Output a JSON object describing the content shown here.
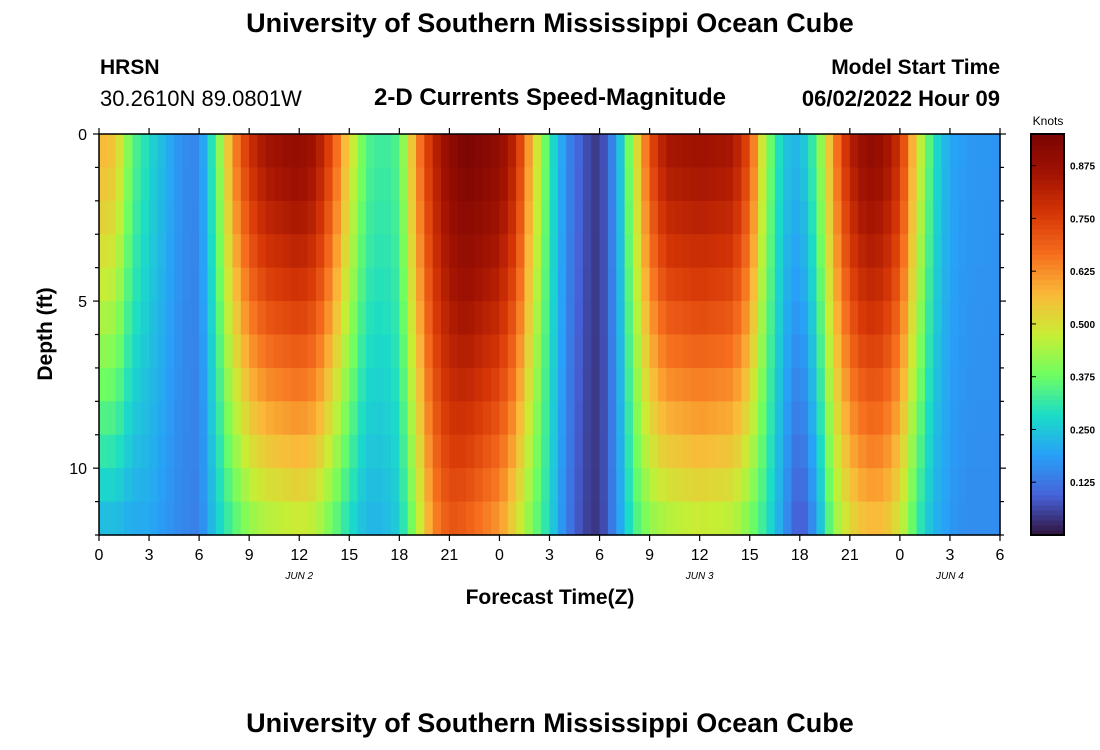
{
  "page": {
    "title": "University of Southern Mississippi Ocean Cube",
    "footer_title": "University of Southern Mississippi Ocean Cube"
  },
  "header": {
    "station": "HRSN",
    "coords": "30.2610N  89.0801W",
    "plot_title": "2-D Currents Speed-Magnitude",
    "start_label": "Model Start Time",
    "start_value": "06/02/2022 Hour 09"
  },
  "chart_data": {
    "type": "heatmap",
    "title": "2-D Currents Speed-Magnitude",
    "xlabel": "Forecast Time(Z)",
    "ylabel": "Depth (ft)",
    "x_hours": [
      0,
      54
    ],
    "x_tick_labels": [
      "0",
      "3",
      "6",
      "9",
      "12",
      "15",
      "18",
      "21",
      "0",
      "3",
      "6",
      "9",
      "12",
      "15",
      "18",
      "21",
      "0",
      "3",
      "6"
    ],
    "date_labels": [
      {
        "label": "JUN 2",
        "hour": 12
      },
      {
        "label": "JUN 3",
        "hour": 36
      },
      {
        "label": "JUN 4",
        "hour": 51
      }
    ],
    "y_range": [
      0,
      12
    ],
    "y_ticks": [
      0,
      5,
      10
    ],
    "y_tick_labels": [
      "0",
      "5",
      "10"
    ],
    "colorbar": {
      "label": "Knots",
      "range": [
        0.0,
        0.95
      ],
      "ticks": [
        "0.125",
        "0.250",
        "0.375",
        "0.500",
        "0.625",
        "0.750",
        "0.875"
      ]
    },
    "speed_profile_by_hour": [
      {
        "hour": 0,
        "surface": 0.58,
        "bottom": 0.22
      },
      {
        "hour": 1,
        "surface": 0.55,
        "bottom": 0.22
      },
      {
        "hour": 2,
        "surface": 0.36,
        "bottom": 0.2
      },
      {
        "hour": 3,
        "surface": 0.28,
        "bottom": 0.2
      },
      {
        "hour": 5,
        "surface": 0.16,
        "bottom": 0.15
      },
      {
        "hour": 6,
        "surface": 0.15,
        "bottom": 0.14
      },
      {
        "hour": 7,
        "surface": 0.35,
        "bottom": 0.25
      },
      {
        "hour": 8,
        "surface": 0.62,
        "bottom": 0.33
      },
      {
        "hour": 9,
        "surface": 0.78,
        "bottom": 0.4
      },
      {
        "hour": 10,
        "surface": 0.86,
        "bottom": 0.43
      },
      {
        "hour": 12,
        "surface": 0.9,
        "bottom": 0.46
      },
      {
        "hour": 13,
        "surface": 0.86,
        "bottom": 0.44
      },
      {
        "hour": 14,
        "surface": 0.72,
        "bottom": 0.36
      },
      {
        "hour": 15,
        "surface": 0.52,
        "bottom": 0.28
      },
      {
        "hour": 16,
        "surface": 0.35,
        "bottom": 0.22
      },
      {
        "hour": 17,
        "surface": 0.32,
        "bottom": 0.22
      },
      {
        "hour": 18,
        "surface": 0.35,
        "bottom": 0.26
      },
      {
        "hour": 19,
        "surface": 0.62,
        "bottom": 0.42
      },
      {
        "hour": 20,
        "surface": 0.8,
        "bottom": 0.62
      },
      {
        "hour": 21,
        "surface": 0.9,
        "bottom": 0.7
      },
      {
        "hour": 22,
        "surface": 0.95,
        "bottom": 0.68
      },
      {
        "hour": 24,
        "surface": 0.9,
        "bottom": 0.6
      },
      {
        "hour": 25,
        "surface": 0.8,
        "bottom": 0.5
      },
      {
        "hour": 26,
        "surface": 0.55,
        "bottom": 0.38
      },
      {
        "hour": 27,
        "surface": 0.32,
        "bottom": 0.28
      },
      {
        "hour": 28,
        "surface": 0.16,
        "bottom": 0.14
      },
      {
        "hour": 29,
        "surface": 0.08,
        "bottom": 0.06
      },
      {
        "hour": 30,
        "surface": 0.04,
        "bottom": 0.04
      },
      {
        "hour": 31,
        "surface": 0.18,
        "bottom": 0.16
      },
      {
        "hour": 32,
        "surface": 0.45,
        "bottom": 0.32
      },
      {
        "hour": 33,
        "surface": 0.72,
        "bottom": 0.4
      },
      {
        "hour": 34,
        "surface": 0.85,
        "bottom": 0.43
      },
      {
        "hour": 36,
        "surface": 0.87,
        "bottom": 0.46
      },
      {
        "hour": 38,
        "surface": 0.85,
        "bottom": 0.44
      },
      {
        "hour": 39,
        "surface": 0.72,
        "bottom": 0.38
      },
      {
        "hour": 40,
        "surface": 0.42,
        "bottom": 0.3
      },
      {
        "hour": 41,
        "surface": 0.25,
        "bottom": 0.18
      },
      {
        "hour": 42,
        "surface": 0.22,
        "bottom": 0.06
      },
      {
        "hour": 43,
        "surface": 0.35,
        "bottom": 0.18
      },
      {
        "hour": 44,
        "surface": 0.62,
        "bottom": 0.4
      },
      {
        "hour": 45,
        "surface": 0.82,
        "bottom": 0.5
      },
      {
        "hour": 46,
        "surface": 0.9,
        "bottom": 0.55
      },
      {
        "hour": 47,
        "surface": 0.88,
        "bottom": 0.55
      },
      {
        "hour": 48,
        "surface": 0.78,
        "bottom": 0.48
      },
      {
        "hour": 49,
        "surface": 0.52,
        "bottom": 0.32
      },
      {
        "hour": 50,
        "surface": 0.3,
        "bottom": 0.22
      },
      {
        "hour": 51,
        "surface": 0.2,
        "bottom": 0.18
      },
      {
        "hour": 52,
        "surface": 0.18,
        "bottom": 0.16
      },
      {
        "hour": 54,
        "surface": 0.17,
        "bottom": 0.16
      }
    ]
  }
}
